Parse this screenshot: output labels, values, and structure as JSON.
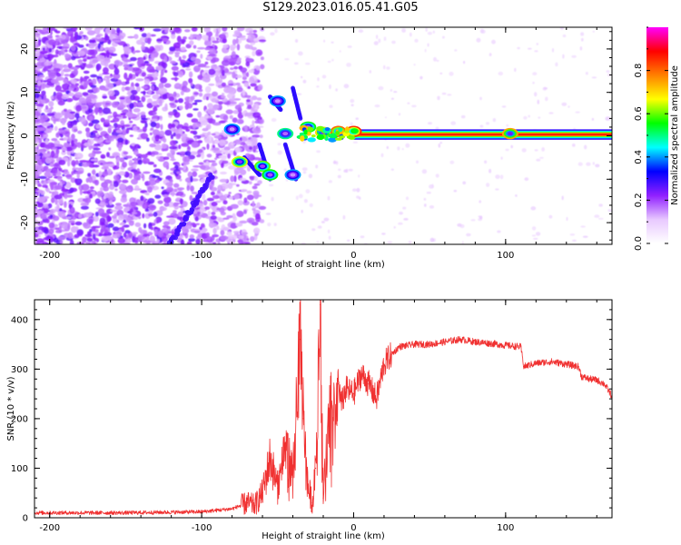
{
  "figure": {
    "title": "S129.2023.016.05.41.G05"
  },
  "chart_data": [
    {
      "type": "heatmap",
      "xlabel": "Height of straight line (km)",
      "ylabel": "Frequency (Hz)",
      "xlim": [
        -210,
        170
      ],
      "ylim": [
        -25,
        25
      ],
      "x_ticks": [
        -200,
        -100,
        0,
        100
      ],
      "y_ticks": [
        -20,
        -10,
        0,
        10,
        20
      ],
      "grid": false,
      "colorbar": {
        "label": "Normalized spectral amplitude",
        "range": [
          0,
          1
        ],
        "ticks": [
          "0.0",
          "0.2",
          "0.4",
          "0.6",
          "0.8"
        ],
        "colors": [
          "#ffffff",
          "#e8c8ff",
          "#9020ff",
          "#0000ff",
          "#00ffff",
          "#00ff00",
          "#ffff00",
          "#ff8000",
          "#ff0000",
          "#ff00ff"
        ]
      },
      "carrier_line": {
        "frequency": 0.3,
        "x_start": 0,
        "x_end": 170,
        "amplitude": 1.0
      },
      "features": [
        {
          "x": -80,
          "y": 1.5,
          "amplitude": 0.35
        },
        {
          "x": -75,
          "y": -6,
          "amplitude": 0.6
        },
        {
          "x": -60,
          "y": -7,
          "amplitude": 0.55
        },
        {
          "x": -55,
          "y": -9,
          "amplitude": 0.5
        },
        {
          "x": -50,
          "y": 8,
          "amplitude": 0.35
        },
        {
          "x": -45,
          "y": 0.5,
          "amplitude": 0.45
        },
        {
          "x": -40,
          "y": -9,
          "amplitude": 0.35
        },
        {
          "x": -30,
          "y": 2,
          "amplitude": 0.5
        },
        {
          "x": -20,
          "y": 0.8,
          "amplitude": 0.65
        },
        {
          "x": -10,
          "y": 1.0,
          "amplitude": 0.75
        },
        {
          "x": 0,
          "y": 1.0,
          "amplitude": 0.8
        },
        {
          "x": 103,
          "y": 0.5,
          "amplitude": 0.7
        }
      ]
    },
    {
      "type": "line",
      "xlabel": "Height of straight line (km)",
      "ylabel": "SNR (10 * v/v)",
      "xlim": [
        -210,
        170
      ],
      "ylim": [
        0,
        440
      ],
      "x_ticks": [
        -200,
        -100,
        0,
        100
      ],
      "y_ticks": [
        0,
        100,
        200,
        300,
        400
      ],
      "grid": false,
      "series": [
        {
          "color": "#f03030",
          "x": [
            -210,
            -150,
            -100,
            -80,
            -70,
            -65,
            -60,
            -55,
            -50,
            -45,
            -40,
            -35,
            -33,
            -30,
            -27,
            -25,
            -22,
            -20,
            -18,
            -15,
            -12,
            -10,
            -8,
            -5,
            0,
            5,
            10,
            15,
            20,
            25,
            30,
            40,
            50,
            60,
            70,
            80,
            90,
            100,
            110,
            112,
            120,
            130,
            140,
            148,
            150,
            155,
            160,
            165,
            170
          ],
          "y": [
            10,
            10,
            12,
            18,
            30,
            25,
            50,
            120,
            60,
            150,
            90,
            360,
            200,
            60,
            30,
            100,
            430,
            40,
            120,
            250,
            200,
            270,
            230,
            260,
            250,
            290,
            270,
            240,
            310,
            330,
            345,
            350,
            350,
            355,
            360,
            355,
            352,
            348,
            345,
            305,
            312,
            315,
            310,
            305,
            285,
            280,
            278,
            270,
            245
          ]
        }
      ]
    }
  ]
}
